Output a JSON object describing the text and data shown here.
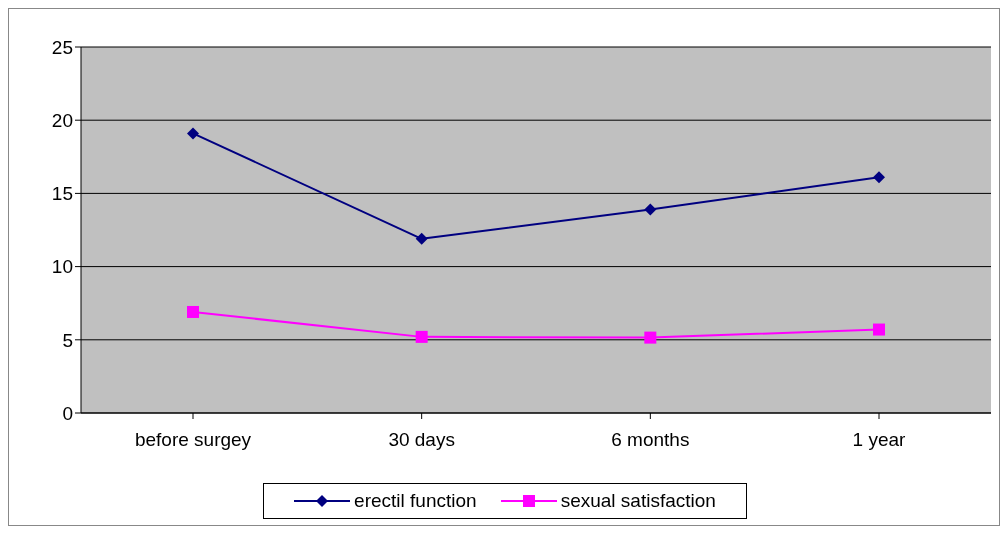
{
  "chart_data": {
    "type": "line",
    "categories": [
      "before surgey",
      "30 days",
      "6 months",
      "1 year"
    ],
    "series": [
      {
        "name": "erectil function",
        "color": "#000080",
        "marker": "diamond",
        "values": [
          19.1,
          11.9,
          13.9,
          16.1
        ]
      },
      {
        "name": "sexual satisfaction",
        "color": "#ff00ff",
        "marker": "square",
        "values": [
          6.9,
          5.2,
          5.15,
          5.7
        ]
      }
    ],
    "ylim": [
      0,
      25
    ],
    "yticks": [
      0,
      5,
      10,
      15,
      20,
      25
    ],
    "grid": "y",
    "legend": "bottom"
  }
}
